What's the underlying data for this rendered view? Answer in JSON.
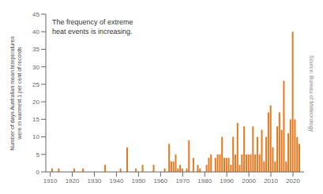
{
  "chart_data": {
    "type": "bar",
    "x": [
      1910,
      1911,
      1912,
      1913,
      1914,
      1915,
      1916,
      1917,
      1918,
      1919,
      1920,
      1921,
      1922,
      1923,
      1924,
      1925,
      1926,
      1927,
      1928,
      1929,
      1930,
      1931,
      1932,
      1933,
      1934,
      1935,
      1936,
      1937,
      1938,
      1939,
      1940,
      1941,
      1942,
      1943,
      1944,
      1945,
      1946,
      1947,
      1948,
      1949,
      1950,
      1951,
      1952,
      1953,
      1954,
      1955,
      1956,
      1957,
      1958,
      1959,
      1960,
      1961,
      1962,
      1963,
      1964,
      1965,
      1966,
      1967,
      1968,
      1969,
      1970,
      1971,
      1972,
      1973,
      1974,
      1975,
      1976,
      1977,
      1978,
      1979,
      1980,
      1981,
      1982,
      1983,
      1984,
      1985,
      1986,
      1987,
      1988,
      1989,
      1990,
      1991,
      1992,
      1993,
      1994,
      1995,
      1996,
      1997,
      1998,
      1999,
      2000,
      2001,
      2002,
      2003,
      2004,
      2005,
      2006,
      2007,
      2008,
      2009,
      2010,
      2011,
      2012,
      2013,
      2014,
      2015,
      2016,
      2017,
      2018,
      2019,
      2020,
      2021,
      2022,
      2023
    ],
    "values": [
      0,
      1,
      0,
      0,
      1,
      0,
      0,
      0,
      0,
      0,
      0,
      1,
      0,
      0,
      0,
      1,
      0,
      0,
      0,
      0,
      0,
      0,
      0,
      0,
      0,
      2,
      0,
      0,
      0,
      0,
      0,
      0,
      1,
      0,
      0,
      7,
      0,
      0,
      0,
      1,
      0,
      0,
      2,
      0,
      0,
      0,
      0,
      2,
      0,
      0,
      0,
      0,
      1,
      0,
      8,
      3,
      3,
      5,
      1,
      2,
      1,
      0,
      1,
      9,
      0,
      4,
      0,
      2,
      1,
      0,
      0,
      2,
      4,
      5,
      0,
      4,
      5,
      5,
      10,
      4,
      4,
      4,
      2,
      10,
      5,
      14,
      2,
      5,
      13,
      5,
      5,
      5,
      13,
      5,
      10,
      5,
      12,
      3,
      10,
      17,
      19,
      7,
      3,
      13,
      17,
      12,
      26,
      3,
      11,
      15,
      40,
      15,
      10,
      8
    ],
    "color": "#E8771E",
    "ylabel": "Number of days Australian mean temperatures\nwere in warmest 1 per cent of records",
    "annotation": "The frequency of extreme\nheat events is increasing.",
    "source": "Source: Bureau of Meteorology",
    "xlim": [
      1908,
      2025
    ],
    "xticks": [
      1910,
      1920,
      1930,
      1940,
      1950,
      1960,
      1970,
      1980,
      1990,
      2000,
      2010,
      2020
    ],
    "ylim": [
      0,
      45
    ],
    "yticks": [
      0,
      5,
      10,
      15,
      20,
      25,
      30,
      35,
      40,
      45
    ],
    "grid": false
  }
}
